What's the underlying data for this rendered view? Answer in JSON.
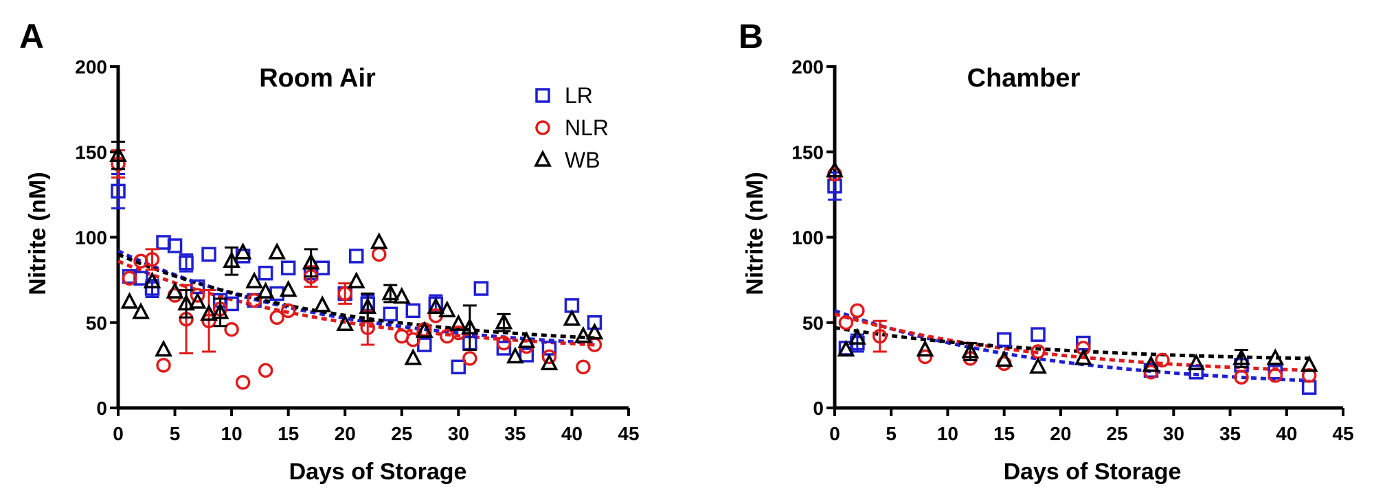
{
  "chart_data": [
    {
      "panel": "A",
      "type": "scatter",
      "title": "Room Air",
      "xlabel": "Days of Storage",
      "ylabel": "Nitrite (nM)",
      "xlim": [
        0,
        45
      ],
      "ylim": [
        0,
        200
      ],
      "xticks": [
        0,
        5,
        10,
        15,
        20,
        25,
        30,
        35,
        40,
        45
      ],
      "yticks": [
        0,
        50,
        100,
        150,
        200
      ],
      "legend": {
        "placement": "top-right",
        "entries": [
          "LR",
          "NLR",
          "WB"
        ]
      },
      "series": [
        {
          "name": "LR",
          "marker": "square",
          "color": "#1f1fd1",
          "trend": [
            92,
            38
          ],
          "points": [
            {
              "x": 0,
              "y": 127,
              "err": 10
            },
            {
              "x": 1,
              "y": 77
            },
            {
              "x": 2,
              "y": 76
            },
            {
              "x": 3,
              "y": 70,
              "err": 5
            },
            {
              "x": 4,
              "y": 97
            },
            {
              "x": 5,
              "y": 95
            },
            {
              "x": 6,
              "y": 85,
              "err": 5
            },
            {
              "x": 7,
              "y": 71
            },
            {
              "x": 8,
              "y": 90
            },
            {
              "x": 9,
              "y": 63
            },
            {
              "x": 10,
              "y": 61
            },
            {
              "x": 11,
              "y": 89
            },
            {
              "x": 12,
              "y": 63
            },
            {
              "x": 13,
              "y": 79
            },
            {
              "x": 14,
              "y": 67
            },
            {
              "x": 15,
              "y": 82
            },
            {
              "x": 17,
              "y": 79
            },
            {
              "x": 18,
              "y": 82
            },
            {
              "x": 20,
              "y": 67
            },
            {
              "x": 21,
              "y": 89
            },
            {
              "x": 22,
              "y": 61,
              "err": 5
            },
            {
              "x": 24,
              "y": 55
            },
            {
              "x": 26,
              "y": 57
            },
            {
              "x": 27,
              "y": 37
            },
            {
              "x": 28,
              "y": 61,
              "err": 5
            },
            {
              "x": 30,
              "y": 24
            },
            {
              "x": 31,
              "y": 38
            },
            {
              "x": 32,
              "y": 70
            },
            {
              "x": 34,
              "y": 35
            },
            {
              "x": 36,
              "y": 31
            },
            {
              "x": 38,
              "y": 35
            },
            {
              "x": 40,
              "y": 60
            },
            {
              "x": 42,
              "y": 50
            }
          ]
        },
        {
          "name": "NLR",
          "marker": "circle",
          "color": "#e01b1b",
          "trend": [
            86,
            37
          ],
          "points": [
            {
              "x": 0,
              "y": 143,
              "err": 8
            },
            {
              "x": 1,
              "y": 76
            },
            {
              "x": 2,
              "y": 86
            },
            {
              "x": 3,
              "y": 87,
              "err": 6
            },
            {
              "x": 4,
              "y": 25
            },
            {
              "x": 5,
              "y": 66
            },
            {
              "x": 6,
              "y": 52,
              "err": 20
            },
            {
              "x": 7,
              "y": 66
            },
            {
              "x": 8,
              "y": 51,
              "err": 18
            },
            {
              "x": 9,
              "y": 58
            },
            {
              "x": 10,
              "y": 46
            },
            {
              "x": 11,
              "y": 15
            },
            {
              "x": 12,
              "y": 63
            },
            {
              "x": 13,
              "y": 22
            },
            {
              "x": 14,
              "y": 53
            },
            {
              "x": 15,
              "y": 57
            },
            {
              "x": 17,
              "y": 77,
              "err": 6
            },
            {
              "x": 20,
              "y": 67,
              "err": 6
            },
            {
              "x": 22,
              "y": 47,
              "err": 10
            },
            {
              "x": 23,
              "y": 90
            },
            {
              "x": 25,
              "y": 42
            },
            {
              "x": 26,
              "y": 40
            },
            {
              "x": 27,
              "y": 46
            },
            {
              "x": 28,
              "y": 54
            },
            {
              "x": 29,
              "y": 42
            },
            {
              "x": 30,
              "y": 44
            },
            {
              "x": 31,
              "y": 29
            },
            {
              "x": 34,
              "y": 38
            },
            {
              "x": 36,
              "y": 36
            },
            {
              "x": 38,
              "y": 30
            },
            {
              "x": 41,
              "y": 24
            },
            {
              "x": 42,
              "y": 37
            }
          ]
        },
        {
          "name": "WB",
          "marker": "triangle",
          "color": "#000000",
          "trend": [
            90,
            41
          ],
          "points": [
            {
              "x": 0,
              "y": 148,
              "err": 8
            },
            {
              "x": 1,
              "y": 62
            },
            {
              "x": 2,
              "y": 56
            },
            {
              "x": 3,
              "y": 74
            },
            {
              "x": 4,
              "y": 34
            },
            {
              "x": 5,
              "y": 68
            },
            {
              "x": 6,
              "y": 61,
              "err": 8
            },
            {
              "x": 7,
              "y": 62
            },
            {
              "x": 8,
              "y": 55
            },
            {
              "x": 9,
              "y": 56,
              "err": 8
            },
            {
              "x": 10,
              "y": 86,
              "err": 8
            },
            {
              "x": 11,
              "y": 91
            },
            {
              "x": 12,
              "y": 74
            },
            {
              "x": 13,
              "y": 68
            },
            {
              "x": 14,
              "y": 91
            },
            {
              "x": 15,
              "y": 69
            },
            {
              "x": 17,
              "y": 85,
              "err": 8
            },
            {
              "x": 18,
              "y": 60
            },
            {
              "x": 20,
              "y": 49
            },
            {
              "x": 21,
              "y": 74
            },
            {
              "x": 22,
              "y": 59,
              "err": 8
            },
            {
              "x": 23,
              "y": 97
            },
            {
              "x": 24,
              "y": 67,
              "err": 5
            },
            {
              "x": 25,
              "y": 65
            },
            {
              "x": 26,
              "y": 29
            },
            {
              "x": 27,
              "y": 45
            },
            {
              "x": 28,
              "y": 59
            },
            {
              "x": 29,
              "y": 57
            },
            {
              "x": 30,
              "y": 49
            },
            {
              "x": 31,
              "y": 47,
              "err": 13
            },
            {
              "x": 34,
              "y": 50,
              "err": 5
            },
            {
              "x": 35,
              "y": 30
            },
            {
              "x": 36,
              "y": 39
            },
            {
              "x": 38,
              "y": 26
            },
            {
              "x": 40,
              "y": 52
            },
            {
              "x": 41,
              "y": 42
            },
            {
              "x": 42,
              "y": 44
            }
          ]
        }
      ]
    },
    {
      "panel": "B",
      "type": "scatter",
      "title": "Chamber",
      "xlabel": "Days of Storage",
      "ylabel": "Nitrite (nM)",
      "xlim": [
        0,
        45
      ],
      "ylim": [
        0,
        200
      ],
      "xticks": [
        0,
        5,
        10,
        15,
        20,
        25,
        30,
        35,
        40,
        45
      ],
      "yticks": [
        0,
        50,
        100,
        150,
        200
      ],
      "series": [
        {
          "name": "LR",
          "marker": "square",
          "color": "#1f1fd1",
          "trend": [
            57,
            16
          ],
          "points": [
            {
              "x": 0,
              "y": 130,
              "err": 8
            },
            {
              "x": 1,
              "y": 35
            },
            {
              "x": 2,
              "y": 38,
              "err": 5
            },
            {
              "x": 15,
              "y": 40
            },
            {
              "x": 18,
              "y": 43
            },
            {
              "x": 22,
              "y": 38
            },
            {
              "x": 28,
              "y": 22
            },
            {
              "x": 32,
              "y": 21
            },
            {
              "x": 36,
              "y": 25
            },
            {
              "x": 39,
              "y": 21
            },
            {
              "x": 42,
              "y": 12
            }
          ]
        },
        {
          "name": "NLR",
          "marker": "circle",
          "color": "#e01b1b",
          "trend": [
            55,
            22
          ],
          "points": [
            {
              "x": 0,
              "y": 137
            },
            {
              "x": 1,
              "y": 50
            },
            {
              "x": 2,
              "y": 57
            },
            {
              "x": 4,
              "y": 42,
              "err": 9
            },
            {
              "x": 8,
              "y": 30
            },
            {
              "x": 12,
              "y": 29
            },
            {
              "x": 15,
              "y": 26
            },
            {
              "x": 18,
              "y": 33
            },
            {
              "x": 22,
              "y": 35
            },
            {
              "x": 28,
              "y": 21
            },
            {
              "x": 29,
              "y": 28
            },
            {
              "x": 36,
              "y": 18
            },
            {
              "x": 39,
              "y": 19
            },
            {
              "x": 42,
              "y": 19
            }
          ]
        },
        {
          "name": "WB",
          "marker": "triangle",
          "color": "#000000",
          "trend": [
            47,
            29
          ],
          "points": [
            {
              "x": 0,
              "y": 139
            },
            {
              "x": 1,
              "y": 34
            },
            {
              "x": 2,
              "y": 41
            },
            {
              "x": 8,
              "y": 34
            },
            {
              "x": 12,
              "y": 33,
              "err": 5
            },
            {
              "x": 15,
              "y": 28
            },
            {
              "x": 18,
              "y": 24
            },
            {
              "x": 22,
              "y": 29
            },
            {
              "x": 28,
              "y": 25
            },
            {
              "x": 32,
              "y": 26
            },
            {
              "x": 36,
              "y": 29,
              "err": 5
            },
            {
              "x": 39,
              "y": 29
            },
            {
              "x": 42,
              "y": 25
            }
          ]
        }
      ]
    }
  ]
}
